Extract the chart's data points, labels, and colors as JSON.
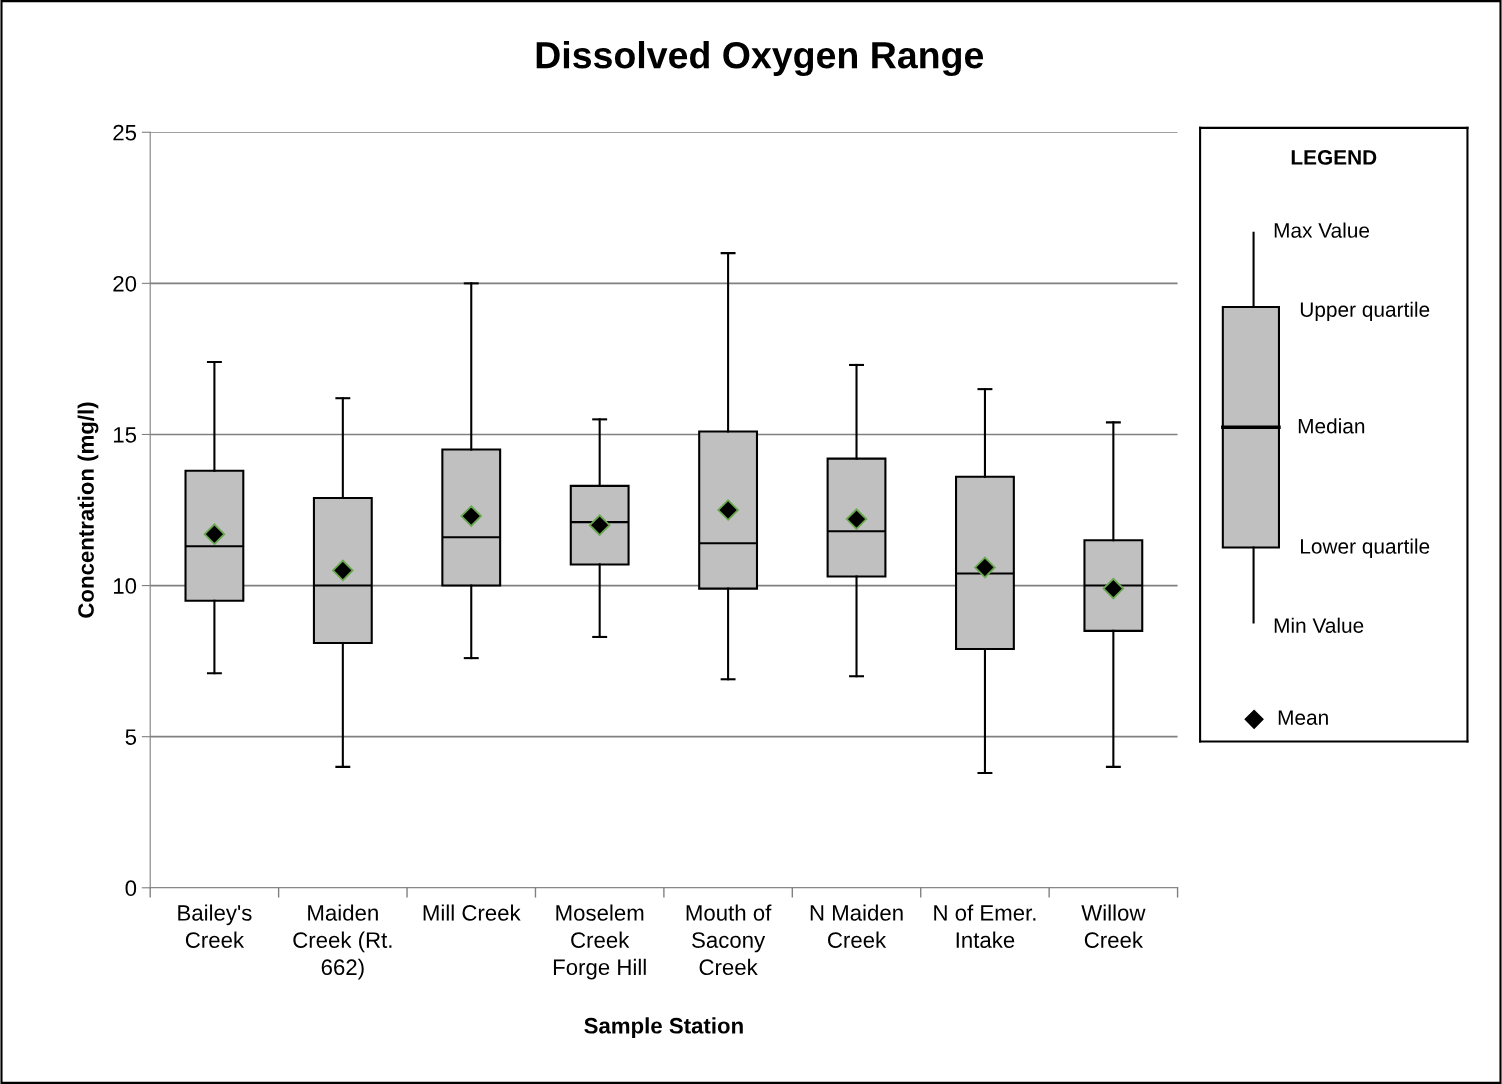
{
  "chart_data": {
    "type": "box",
    "title": "Dissolved Oxygen Range",
    "xlabel": "Sample Station",
    "ylabel": "Concentration (mg/l)",
    "categories": [
      "Bailey's Creek",
      "Maiden Creek (Rt. 662)",
      "Mill Creek",
      "Moselem Creek Forge Hill",
      "Mouth of Sacony Creek",
      "N Maiden Creek",
      "N of Emer. Intake",
      "Willow Creek"
    ],
    "color": "#c0c0c0",
    "boxes": [
      {
        "low": 7.1,
        "q1": 9.5,
        "median": 11.3,
        "q3": 13.8,
        "high": 17.4,
        "mean": 11.7
      },
      {
        "low": 4.0,
        "q1": 8.1,
        "median": 10.0,
        "q3": 12.9,
        "high": 16.2,
        "mean": 10.5
      },
      {
        "low": 7.6,
        "q1": 10.0,
        "median": 11.6,
        "q3": 14.5,
        "high": 20.0,
        "mean": 12.3
      },
      {
        "low": 8.3,
        "q1": 10.7,
        "median": 12.1,
        "q3": 13.3,
        "high": 15.5,
        "mean": 12.0
      },
      {
        "low": 6.9,
        "q1": 9.9,
        "median": 11.4,
        "q3": 15.1,
        "high": 21.0,
        "mean": 12.5
      },
      {
        "low": 7.0,
        "q1": 10.3,
        "median": 11.8,
        "q3": 14.2,
        "high": 17.3,
        "mean": 12.2
      },
      {
        "low": 3.8,
        "q1": 7.9,
        "median": 10.4,
        "q3": 13.6,
        "high": 16.5,
        "mean": 10.6
      },
      {
        "low": 4.0,
        "q1": 8.5,
        "median": 10.0,
        "q3": 11.5,
        "high": 15.4,
        "mean": 9.9
      }
    ],
    "ylim": [
      0,
      25
    ],
    "yticks": [
      0,
      5,
      10,
      15,
      20,
      25
    ],
    "grid": "y",
    "marker": "diamond",
    "annotations": [
      "LEGEND",
      "Max Value",
      "Upper quartile",
      "Median",
      "Lower quartile",
      "Min Value",
      "Mean"
    ]
  }
}
